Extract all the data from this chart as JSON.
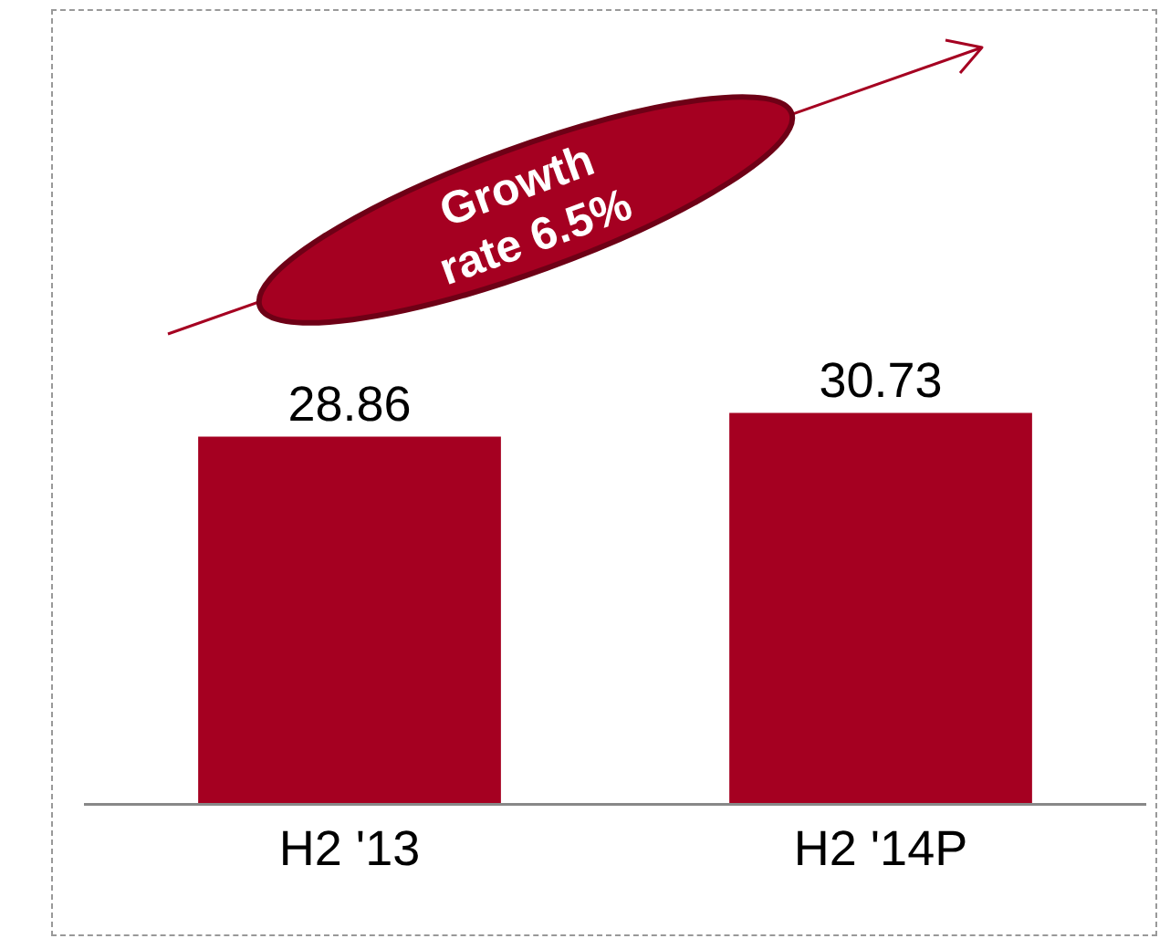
{
  "chart_data": {
    "type": "bar",
    "categories": [
      "H2 '13",
      "H2 '14P"
    ],
    "values": [
      28.86,
      30.73
    ],
    "color": "#a50021",
    "data_labels": true,
    "grid": false,
    "legend": false,
    "tick_labels": "x",
    "annotations": [
      "Growth\nrate 6.5%"
    ]
  }
}
